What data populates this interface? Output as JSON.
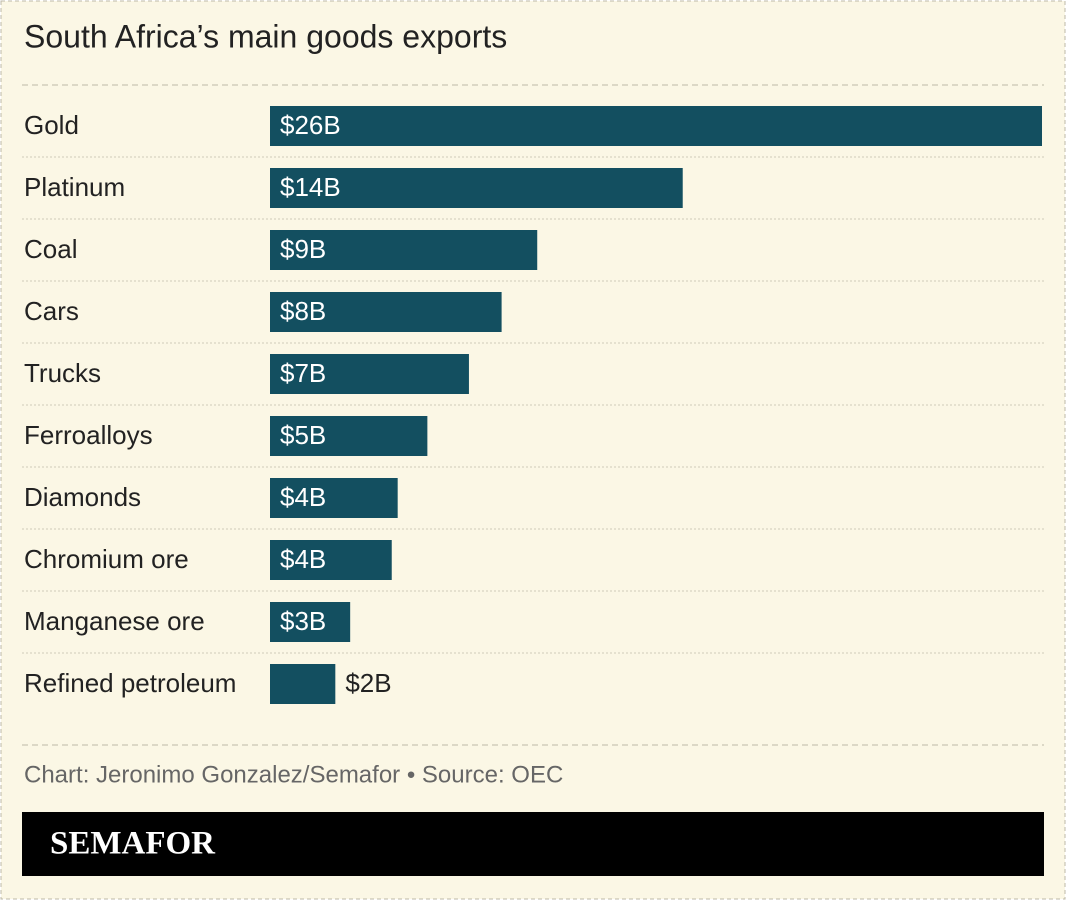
{
  "chart_data": {
    "type": "bar",
    "orientation": "horizontal",
    "title": "South Africa’s main goods exports",
    "categories": [
      "Gold",
      "Platinum",
      "Coal",
      "Cars",
      "Trucks",
      "Ferroalloys",
      "Diamonds",
      "Chromium ore",
      "Manganese ore",
      "Refined petroleum"
    ],
    "values": [
      26,
      13.9,
      9.0,
      7.8,
      6.7,
      5.3,
      4.3,
      4.1,
      2.7,
      2.2
    ],
    "value_labels": [
      "$26B",
      "$14B",
      "$9B",
      "$8B",
      "$7B",
      "$5B",
      "$4B",
      "$4B",
      "$3B",
      "$2B"
    ],
    "color": "#134f60",
    "source": "Chart: Jeronimo Gonzalez/Semafor • Source: OEC"
  },
  "footer": {
    "logo": "SEMAFOR"
  }
}
